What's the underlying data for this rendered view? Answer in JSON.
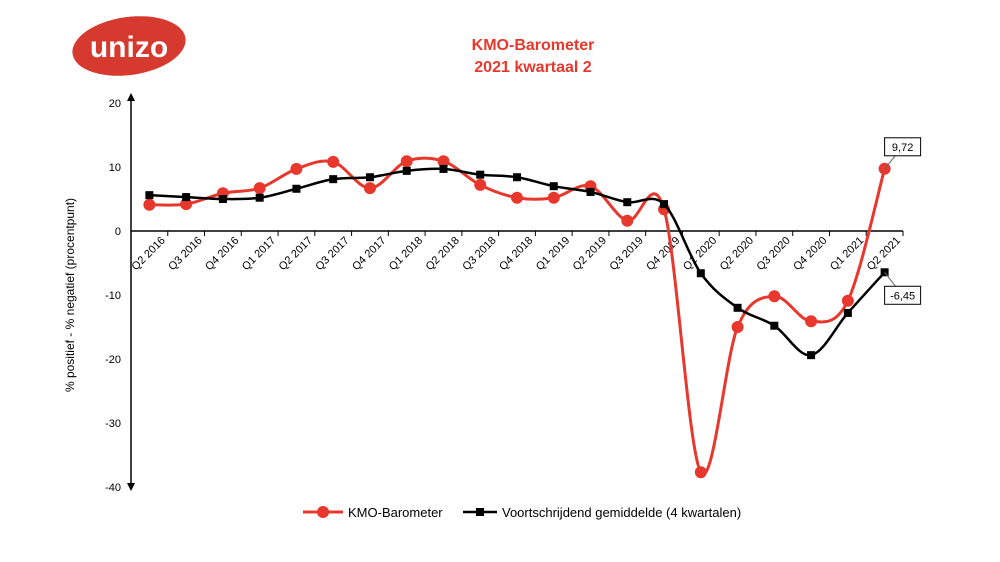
{
  "logo": {
    "text": "unizo",
    "color": "#d63a2f"
  },
  "chart_data": {
    "type": "line",
    "title": "KMO-Barometer",
    "subtitle": "2021 kwartaal 2",
    "ylabel": "% positief - % negatief (procentpunt)",
    "xlabel": "",
    "ylim": [
      -40,
      20
    ],
    "yticks": [
      20,
      10,
      0,
      -10,
      -20,
      -30,
      -40
    ],
    "grid": false,
    "legend": "bottom",
    "categories": [
      "Q2 2016",
      "Q3 2016",
      "Q4 2016",
      "Q1 2017",
      "Q2 2017",
      "Q3 2017",
      "Q4 2017",
      "Q1 2018",
      "Q2 2018",
      "Q3 2018",
      "Q4 2018",
      "Q1 2019",
      "Q2 2019",
      "Q3 2019",
      "Q4 2019",
      "Q1 2020",
      "Q2 2020",
      "Q3 2020",
      "Q4 2020",
      "Q1 2021",
      "Q2 2021"
    ],
    "series": [
      {
        "name": "KMO-Barometer",
        "color": "#e8382d",
        "marker": "circle",
        "values": [
          4.1,
          4.2,
          5.9,
          6.7,
          9.7,
          10.8,
          6.7,
          10.9,
          10.9,
          7.2,
          5.2,
          5.2,
          7.0,
          1.6,
          3.4,
          -37.7,
          -15.0,
          -10.2,
          -14.1,
          -10.9,
          9.72
        ]
      },
      {
        "name": "Voortschrijdend gemiddelde (4 kwartalen)",
        "color": "#000000",
        "marker": "square",
        "values": [
          5.6,
          5.3,
          5.0,
          5.2,
          6.6,
          8.1,
          8.4,
          9.4,
          9.7,
          8.8,
          8.4,
          7.0,
          6.1,
          4.5,
          4.2,
          -6.6,
          -12.0,
          -14.8,
          -19.4,
          -12.8,
          -6.45
        ]
      }
    ],
    "annotations": [
      "9,72",
      "-6,45"
    ]
  }
}
